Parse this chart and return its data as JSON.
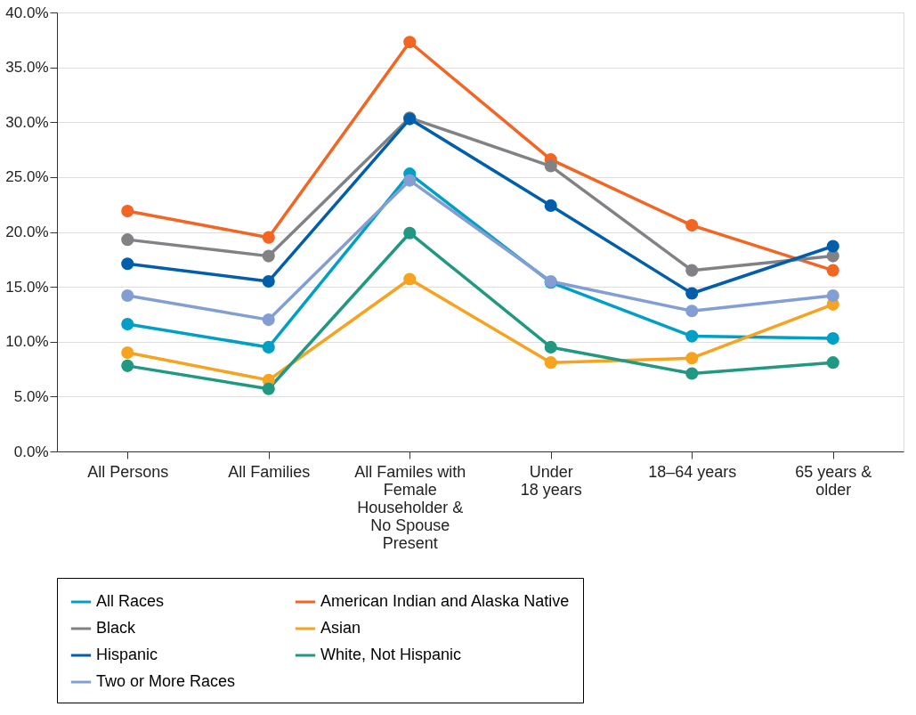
{
  "chart_data": {
    "type": "line",
    "categories": [
      "All Persons",
      "All Families",
      "All Familes with\nFemale\nHouseholder &\nNo Spouse\nPresent",
      "Under\n18 years",
      "18–64 years",
      "65 years &\nolder"
    ],
    "series": [
      {
        "name": "All Races",
        "color": "#00a0c6",
        "values": [
          11.6,
          9.5,
          25.3,
          15.4,
          10.5,
          10.3
        ]
      },
      {
        "name": "American Indian and Alaska Native",
        "color": "#f26522",
        "values": [
          21.9,
          19.5,
          37.3,
          26.6,
          20.6,
          16.5
        ]
      },
      {
        "name": "Black",
        "color": "#808285",
        "values": [
          19.3,
          17.8,
          30.4,
          26.0,
          16.5,
          17.8
        ]
      },
      {
        "name": "Asian",
        "color": "#f6a31f",
        "values": [
          9.0,
          6.5,
          15.7,
          8.1,
          8.5,
          13.4
        ]
      },
      {
        "name": "Hispanic",
        "color": "#005eab",
        "values": [
          17.1,
          15.5,
          30.3,
          22.4,
          14.4,
          18.7
        ]
      },
      {
        "name": "White, Not Hispanic",
        "color": "#219882",
        "values": [
          7.8,
          5.7,
          19.9,
          9.5,
          7.1,
          8.1
        ]
      },
      {
        "name": "Two or More Races",
        "color": "#829ed2",
        "values": [
          14.2,
          12.0,
          24.7,
          15.5,
          12.8,
          14.2
        ]
      }
    ],
    "ylim": [
      0,
      40
    ],
    "yticks": [
      {
        "value": 0,
        "label": "0.0%"
      },
      {
        "value": 5,
        "label": "5.0%"
      },
      {
        "value": 10,
        "label": "10.0%"
      },
      {
        "value": 15,
        "label": "15.0%"
      },
      {
        "value": 20,
        "label": "20.0%"
      },
      {
        "value": 25,
        "label": "25.0%"
      },
      {
        "value": 30,
        "label": "30.0%"
      },
      {
        "value": 35,
        "label": "35.0%"
      },
      {
        "value": 40,
        "label": "40.0%"
      }
    ],
    "grid": "y",
    "legend": "bottom",
    "marker": "circle",
    "line_style": "solid"
  }
}
